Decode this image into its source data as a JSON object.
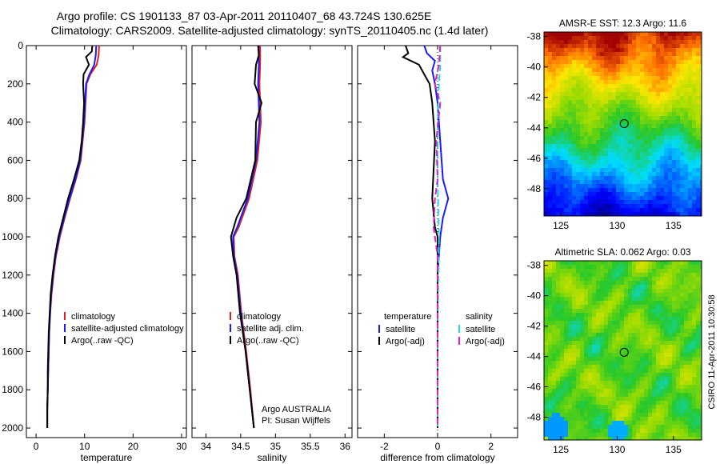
{
  "header": {
    "line1": "Argo profile: CS 1901133_87 03-Apr-2011 20110407_68 43.724S 130.625E",
    "line2": "Climatology: CARS2009. Satellite-adjusted climatology: synTS_20110405.nc (1.4d later)"
  },
  "colors": {
    "climatology": "#e0201f",
    "satellite": "#1a1aff",
    "argo": "#000000",
    "sat_salinity": "#22dddd",
    "argo_salinity_adj": "#e020c0"
  },
  "chart_data": [
    {
      "type": "line",
      "id": "temperature",
      "xlabel": "temperature",
      "ylabel": "",
      "xlim": [
        -2,
        31
      ],
      "ylim": [
        2050,
        0
      ],
      "xticks": [
        0,
        10,
        20,
        30
      ],
      "yticks": [
        0,
        200,
        400,
        600,
        800,
        1000,
        1200,
        1400,
        1600,
        1800,
        2000
      ],
      "legend": [
        "climatology",
        "satellite-adjusted climatology",
        "Argo(..raw -QC)"
      ],
      "legend_loc": "lower-right",
      "series": [
        {
          "name": "climatology",
          "color": "#e0201f",
          "points": [
            [
              13,
              0
            ],
            [
              12.9,
              50
            ],
            [
              12.5,
              100
            ],
            [
              11.2,
              150
            ],
            [
              10.4,
              200
            ],
            [
              10.2,
              300
            ],
            [
              10,
              400
            ],
            [
              9.6,
              500
            ],
            [
              9.2,
              600
            ],
            [
              8.2,
              700
            ],
            [
              7,
              800
            ],
            [
              5.9,
              900
            ],
            [
              4.9,
              1000
            ],
            [
              4.1,
              1100
            ],
            [
              3.6,
              1200
            ],
            [
              3.2,
              1300
            ],
            [
              2.9,
              1400
            ],
            [
              2.7,
              1500
            ],
            [
              2.6,
              1600
            ],
            [
              2.5,
              1700
            ],
            [
              2.4,
              1800
            ],
            [
              2.3,
              1900
            ],
            [
              2.3,
              2000
            ]
          ]
        },
        {
          "name": "satellite-adjusted climatology",
          "color": "#1a1aff",
          "points": [
            [
              12.4,
              0
            ],
            [
              12.3,
              50
            ],
            [
              12,
              100
            ],
            [
              11,
              150
            ],
            [
              10.3,
              200
            ],
            [
              10.1,
              300
            ],
            [
              9.9,
              400
            ],
            [
              9.5,
              500
            ],
            [
              9.1,
              600
            ],
            [
              8.1,
              700
            ],
            [
              6.9,
              800
            ],
            [
              5.8,
              900
            ],
            [
              4.8,
              1000
            ],
            [
              4,
              1100
            ],
            [
              3.5,
              1200
            ],
            [
              3.1,
              1300
            ],
            [
              2.9,
              1400
            ],
            [
              2.7,
              1500
            ],
            [
              2.6,
              1600
            ],
            [
              2.5,
              1700
            ],
            [
              2.4,
              1800
            ],
            [
              2.3,
              1900
            ],
            [
              2.3,
              2000
            ]
          ]
        },
        {
          "name": "Argo(..raw -QC)",
          "color": "#000000",
          "points": [
            [
              11.6,
              0
            ],
            [
              11.5,
              30
            ],
            [
              10.3,
              60
            ],
            [
              10.9,
              100
            ],
            [
              9.8,
              150
            ],
            [
              9.7,
              200
            ],
            [
              9.9,
              300
            ],
            [
              9.7,
              400
            ],
            [
              9.4,
              500
            ],
            [
              8.9,
              600
            ],
            [
              7.8,
              700
            ],
            [
              6.6,
              800
            ],
            [
              5.6,
              900
            ],
            [
              4.6,
              1000
            ],
            [
              3.9,
              1100
            ],
            [
              3.4,
              1200
            ],
            [
              3,
              1300
            ],
            [
              2.8,
              1400
            ],
            [
              2.6,
              1500
            ],
            [
              2.5,
              1600
            ],
            [
              2.4,
              1700
            ],
            [
              2.4,
              1800
            ],
            [
              2.3,
              1900
            ],
            [
              2.3,
              2000
            ]
          ]
        }
      ]
    },
    {
      "type": "line",
      "id": "salinity",
      "xlabel": "salinity",
      "ylabel": "",
      "xlim": [
        33.8,
        36.1
      ],
      "ylim": [
        2050,
        0
      ],
      "xticks": [
        34,
        34.5,
        35,
        35.5,
        36
      ],
      "legend": [
        "climatology",
        "satellite adj. clim.",
        "Argo(..raw -QC)"
      ],
      "legend_loc": "lower-right",
      "annotation": [
        "Argo AUSTRALIA",
        "PI: Susan Wijffels"
      ],
      "series": [
        {
          "name": "climatology",
          "color": "#e0201f",
          "points": [
            [
              34.78,
              0
            ],
            [
              34.78,
              100
            ],
            [
              34.77,
              200
            ],
            [
              34.79,
              400
            ],
            [
              34.74,
              600
            ],
            [
              34.62,
              800
            ],
            [
              34.47,
              950
            ],
            [
              34.4,
              1000
            ],
            [
              34.41,
              1100
            ],
            [
              34.46,
              1200
            ],
            [
              34.51,
              1400
            ],
            [
              34.58,
              1600
            ],
            [
              34.64,
              1800
            ],
            [
              34.69,
              2000
            ]
          ]
        },
        {
          "name": "satellite adj. clim.",
          "color": "#1a1aff",
          "points": [
            [
              34.76,
              0
            ],
            [
              34.76,
              100
            ],
            [
              34.75,
              200
            ],
            [
              34.77,
              400
            ],
            [
              34.72,
              600
            ],
            [
              34.6,
              800
            ],
            [
              34.45,
              950
            ],
            [
              34.39,
              1000
            ],
            [
              34.4,
              1100
            ],
            [
              34.45,
              1200
            ],
            [
              34.5,
              1400
            ],
            [
              34.57,
              1600
            ],
            [
              34.63,
              1800
            ],
            [
              34.69,
              2000
            ]
          ]
        },
        {
          "name": "Argo(..raw -QC)",
          "color": "#000000",
          "points": [
            [
              34.75,
              0
            ],
            [
              34.76,
              50
            ],
            [
              34.72,
              100
            ],
            [
              34.7,
              200
            ],
            [
              34.8,
              300
            ],
            [
              34.72,
              400
            ],
            [
              34.71,
              600
            ],
            [
              34.58,
              800
            ],
            [
              34.44,
              900
            ],
            [
              34.36,
              1000
            ],
            [
              34.39,
              1100
            ],
            [
              34.44,
              1200
            ],
            [
              34.49,
              1400
            ],
            [
              34.57,
              1600
            ],
            [
              34.63,
              1800
            ],
            [
              34.69,
              2000
            ]
          ]
        }
      ]
    },
    {
      "type": "line",
      "id": "difference",
      "xlabel": "difference from climatology",
      "ylabel": "",
      "xlim": [
        -3,
        3
      ],
      "ylim": [
        2050,
        0
      ],
      "xticks": [
        -2,
        0,
        2
      ],
      "legend_groups": [
        {
          "title": "temperature",
          "items": [
            "satellite",
            "Argo(-adj)"
          ]
        },
        {
          "title": "salinity",
          "items": [
            "satellite",
            "Argo(-adj)"
          ]
        }
      ],
      "legend_loc": "lower-center",
      "series": [
        {
          "name": "satellite",
          "group": "temperature",
          "color": "#1a1aff",
          "points": [
            [
              -0.5,
              0
            ],
            [
              -0.4,
              40
            ],
            [
              -0.1,
              80
            ],
            [
              -0.2,
              130
            ],
            [
              -0.1,
              200
            ],
            [
              0,
              300
            ],
            [
              0.1,
              500
            ],
            [
              0.2,
              700
            ],
            [
              0.4,
              800
            ],
            [
              0.2,
              900
            ],
            [
              0.1,
              1000
            ],
            [
              0,
              1200
            ],
            [
              0,
              1500
            ],
            [
              0,
              2000
            ]
          ]
        },
        {
          "name": "Argo(-adj)",
          "group": "temperature",
          "color": "#000000",
          "points": [
            [
              -1.2,
              0
            ],
            [
              -1.1,
              40
            ],
            [
              -1.3,
              60
            ],
            [
              -0.7,
              100
            ],
            [
              -0.5,
              150
            ],
            [
              -0.3,
              200
            ],
            [
              -0.2,
              300
            ],
            [
              -0.1,
              500
            ],
            [
              -0.2,
              800
            ],
            [
              -0.1,
              950
            ],
            [
              0,
              1000
            ],
            [
              0,
              1200
            ],
            [
              0,
              1500
            ],
            [
              0,
              2000
            ]
          ]
        },
        {
          "name": "satellite",
          "group": "salinity",
          "color": "#22dddd",
          "points": [
            [
              0.1,
              0
            ],
            [
              0.1,
              100
            ],
            [
              0.05,
              200
            ],
            [
              0,
              400
            ],
            [
              0,
              700
            ],
            [
              0.05,
              1000
            ],
            [
              0,
              1500
            ],
            [
              0,
              2000
            ]
          ]
        },
        {
          "name": "Argo(-adj)",
          "group": "salinity",
          "color": "#e020c0",
          "points": [
            [
              0.1,
              0
            ],
            [
              0.05,
              100
            ],
            [
              -0.1,
              200
            ],
            [
              0.1,
              300
            ],
            [
              -0.05,
              500
            ],
            [
              0,
              700
            ],
            [
              -0.1,
              800
            ],
            [
              -0.15,
              950
            ],
            [
              0,
              1100
            ],
            [
              0,
              1500
            ],
            [
              0,
              2000
            ]
          ]
        }
      ]
    },
    {
      "type": "heatmap",
      "id": "sst-map",
      "title": "AMSR-E SST: 12.3 Argo: 11.6",
      "xlim": [
        123.5,
        137.5
      ],
      "ylim": [
        -49.8,
        -37.7
      ],
      "xticks": [
        125,
        130,
        135
      ],
      "yticks": [
        -38,
        -40,
        -42,
        -44,
        -46,
        -48
      ],
      "marker": [
        130.625,
        -43.724
      ]
    },
    {
      "type": "heatmap",
      "id": "sla-map",
      "title": "Altimetric SLA: 0.062 Argo: 0.03",
      "xlim": [
        123.5,
        137.5
      ],
      "ylim": [
        -49.5,
        -37.7
      ],
      "xticks": [
        125,
        130,
        135
      ],
      "yticks": [
        -38,
        -40,
        -42,
        -44,
        -46,
        -48
      ],
      "marker": [
        130.625,
        -43.724
      ]
    }
  ],
  "footer": {
    "credit": "CSIRO 11-Apr-2011 10:30:58"
  }
}
